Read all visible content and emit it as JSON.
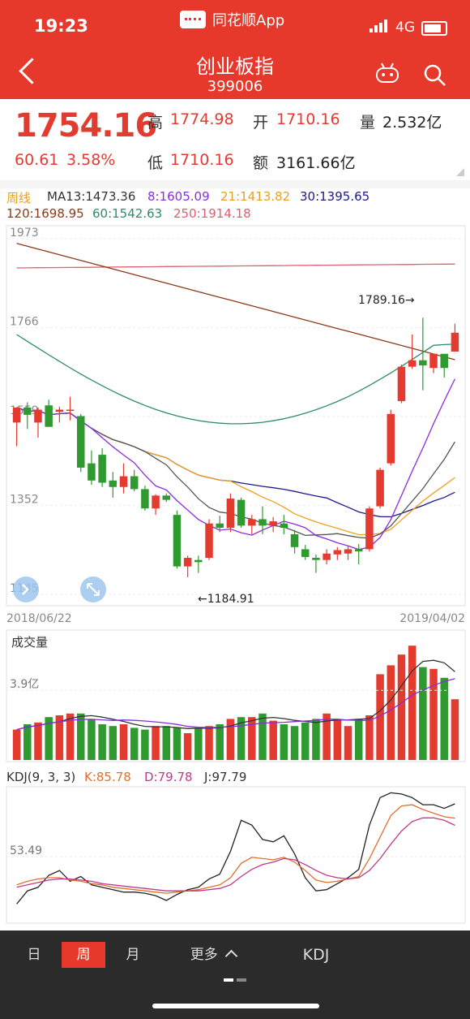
{
  "status_bar": {
    "time": "19:23",
    "app_name": "同花顺App",
    "network": "4G"
  },
  "header": {
    "title": "创业板指",
    "code": "399006"
  },
  "quote": {
    "price": "1754.16",
    "change": "60.61",
    "change_pct": "3.58%",
    "high_label": "高",
    "high": "1774.98",
    "open_label": "开",
    "open": "1710.16",
    "volume_label": "量",
    "volume": "2.532亿",
    "low_label": "低",
    "low": "1710.16",
    "amount_label": "额",
    "amount": "3161.66亿"
  },
  "ma_legend": {
    "period": "周线",
    "ma13": "MA13:1473.36",
    "ma8": "8:1605.09",
    "ma21": "21:1413.82",
    "ma30": "30:1395.65",
    "ma120": "120:1698.95",
    "ma60": "60:1542.63",
    "ma250": "250:1914.18"
  },
  "colors": {
    "up": "#e33b2f",
    "down": "#2f9a2f",
    "ma8": "#8b2be2",
    "ma13": "#555555",
    "ma21": "#f0a020",
    "ma30": "#1a1a8c",
    "ma60": "#2e8b6e",
    "ma120": "#8b3a1a",
    "ma250": "#e06070"
  },
  "chart_data": [
    {
      "type": "candlestick",
      "period": "weekly",
      "y_ticks": [
        "1973",
        "1766",
        "1559",
        "1352",
        "1145"
      ],
      "ylim": [
        1145,
        1973
      ],
      "x_start_label": "2018/06/22",
      "x_end_label": "2019/04/02",
      "high_annotation": "1789.16→",
      "low_annotation": "←1184.91",
      "candles": [
        {
          "o": 1545,
          "h": 1580,
          "l": 1490,
          "c": 1580
        },
        {
          "o": 1580,
          "h": 1592,
          "l": 1530,
          "c": 1563
        },
        {
          "o": 1545,
          "h": 1580,
          "l": 1510,
          "c": 1575
        },
        {
          "o": 1585,
          "h": 1598,
          "l": 1535,
          "c": 1535
        },
        {
          "o": 1570,
          "h": 1582,
          "l": 1545,
          "c": 1575
        },
        {
          "o": 1575,
          "h": 1605,
          "l": 1550,
          "c": 1575
        },
        {
          "o": 1560,
          "h": 1565,
          "l": 1430,
          "c": 1440
        },
        {
          "o": 1450,
          "h": 1480,
          "l": 1400,
          "c": 1410
        },
        {
          "o": 1470,
          "h": 1485,
          "l": 1395,
          "c": 1405
        },
        {
          "o": 1410,
          "h": 1430,
          "l": 1370,
          "c": 1395
        },
        {
          "o": 1395,
          "h": 1450,
          "l": 1380,
          "c": 1420
        },
        {
          "o": 1420,
          "h": 1435,
          "l": 1385,
          "c": 1390
        },
        {
          "o": 1390,
          "h": 1398,
          "l": 1340,
          "c": 1345
        },
        {
          "o": 1345,
          "h": 1378,
          "l": 1330,
          "c": 1375
        },
        {
          "o": 1375,
          "h": 1380,
          "l": 1360,
          "c": 1365
        },
        {
          "o": 1330,
          "h": 1340,
          "l": 1205,
          "c": 1210
        },
        {
          "o": 1210,
          "h": 1235,
          "l": 1184.91,
          "c": 1230
        },
        {
          "o": 1225,
          "h": 1235,
          "l": 1195,
          "c": 1220
        },
        {
          "o": 1230,
          "h": 1320,
          "l": 1225,
          "c": 1310
        },
        {
          "o": 1310,
          "h": 1328,
          "l": 1290,
          "c": 1300
        },
        {
          "o": 1300,
          "h": 1380,
          "l": 1290,
          "c": 1368
        },
        {
          "o": 1365,
          "h": 1370,
          "l": 1300,
          "c": 1305
        },
        {
          "o": 1305,
          "h": 1330,
          "l": 1285,
          "c": 1320
        },
        {
          "o": 1320,
          "h": 1350,
          "l": 1285,
          "c": 1305
        },
        {
          "o": 1305,
          "h": 1325,
          "l": 1290,
          "c": 1315
        },
        {
          "o": 1310,
          "h": 1330,
          "l": 1285,
          "c": 1300
        },
        {
          "o": 1285,
          "h": 1295,
          "l": 1240,
          "c": 1255
        },
        {
          "o": 1250,
          "h": 1260,
          "l": 1225,
          "c": 1232
        },
        {
          "o": 1230,
          "h": 1238,
          "l": 1195,
          "c": 1225
        },
        {
          "o": 1225,
          "h": 1250,
          "l": 1215,
          "c": 1240
        },
        {
          "o": 1238,
          "h": 1255,
          "l": 1225,
          "c": 1248
        },
        {
          "o": 1240,
          "h": 1258,
          "l": 1225,
          "c": 1250
        },
        {
          "o": 1250,
          "h": 1262,
          "l": 1215,
          "c": 1245
        },
        {
          "o": 1250,
          "h": 1350,
          "l": 1245,
          "c": 1345
        },
        {
          "o": 1350,
          "h": 1440,
          "l": 1345,
          "c": 1435
        },
        {
          "o": 1450,
          "h": 1575,
          "l": 1445,
          "c": 1565
        },
        {
          "o": 1595,
          "h": 1680,
          "l": 1590,
          "c": 1675
        },
        {
          "o": 1675,
          "h": 1750,
          "l": 1670,
          "c": 1690
        },
        {
          "o": 1690,
          "h": 1789.16,
          "l": 1620,
          "c": 1678
        },
        {
          "o": 1672,
          "h": 1705,
          "l": 1660,
          "c": 1705
        },
        {
          "o": 1705,
          "h": 1705,
          "l": 1650,
          "c": 1672
        },
        {
          "o": 1710.16,
          "h": 1774.98,
          "l": 1710.16,
          "c": 1754.16
        }
      ]
    },
    {
      "type": "bar",
      "title": "成交量",
      "y_tick": "3.9亿",
      "ymax": 7.0,
      "values": [
        1.7,
        2.0,
        2.1,
        2.4,
        2.5,
        2.6,
        2.6,
        2.3,
        2.0,
        1.9,
        2.0,
        1.8,
        1.7,
        1.9,
        1.9,
        1.8,
        1.5,
        1.8,
        1.9,
        2.0,
        2.3,
        2.4,
        2.4,
        2.6,
        2.2,
        2.0,
        1.9,
        2.1,
        2.3,
        2.6,
        2.3,
        1.9,
        2.3,
        2.5,
        4.8,
        5.3,
        5.9,
        6.4,
        5.2,
        5.1,
        4.6,
        3.4
      ]
    },
    {
      "type": "line",
      "title": "KDJ(9, 3, 3)",
      "legend": [
        "K:85.78",
        "D:79.78",
        "J:97.79"
      ],
      "y_tick": "53.49",
      "ylim": [
        0,
        110
      ],
      "K": [
        30,
        33,
        35,
        36,
        36,
        34,
        33,
        31,
        30,
        28,
        27,
        26,
        25,
        24,
        23,
        24,
        25,
        26,
        28,
        30,
        36,
        48,
        53,
        52,
        51,
        53,
        49,
        42,
        34,
        32,
        33,
        35,
        37,
        52,
        70,
        88,
        96,
        97,
        93,
        90,
        87,
        85.78
      ],
      "D": [
        28,
        30,
        32,
        34,
        35,
        35,
        34,
        33,
        31,
        30,
        29,
        28,
        27,
        26,
        25,
        25,
        25,
        25,
        26,
        27,
        30,
        37,
        43,
        47,
        49,
        52,
        51,
        47,
        42,
        38,
        36,
        35,
        36,
        42,
        52,
        64,
        75,
        83,
        86,
        86,
        84,
        79.78
      ],
      "J": [
        14,
        25,
        28,
        38,
        42,
        33,
        37,
        30,
        28,
        26,
        24,
        24,
        23,
        21,
        17,
        22,
        26,
        28,
        35,
        39,
        58,
        84,
        80,
        68,
        66,
        71,
        56,
        36,
        25,
        26,
        31,
        36,
        43,
        80,
        103,
        107,
        106,
        103,
        97,
        97,
        94,
        97.79
      ]
    }
  ],
  "bottom_tabs": {
    "day": "日",
    "week": "周",
    "month": "月",
    "more": "更多",
    "indicator": "KDJ"
  }
}
